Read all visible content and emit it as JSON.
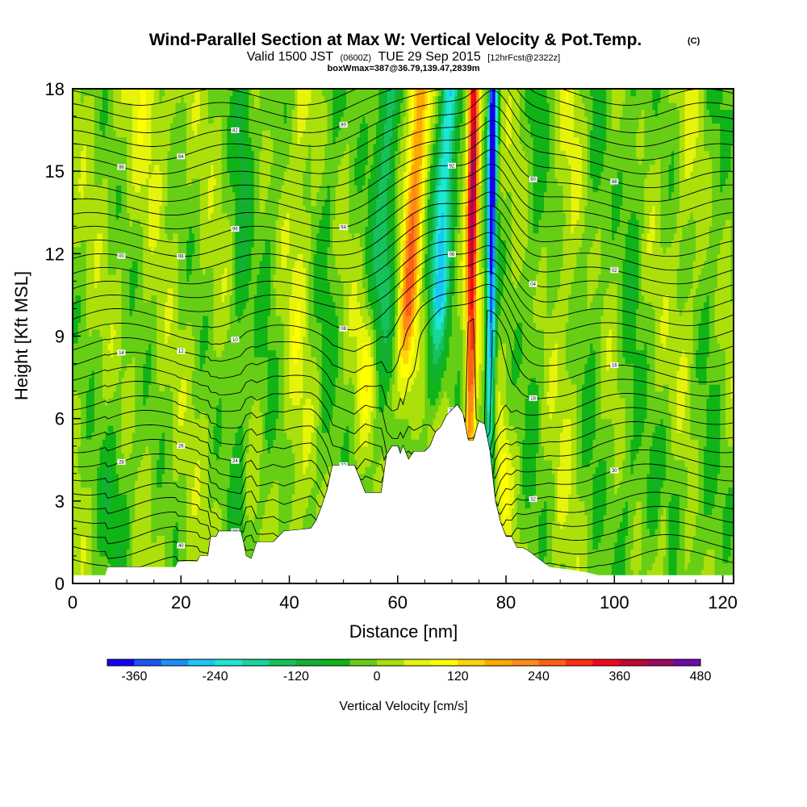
{
  "title": {
    "main": "Wind-Parallel Section at Max W: Vertical Velocity & Pot.Temp.",
    "copyright": "(C)",
    "valid_1": "Valid 1500 JST",
    "valid_z": "(0600Z)",
    "valid_2": "TUE 29 Sep 2015",
    "fcst": "[12hrFcst@2322z]",
    "boxwmax": "boxWmax=387@36.79,139.47,2839m"
  },
  "chart_data": {
    "type": "heatmap",
    "xlabel": "Distance [nm]",
    "ylabel": "Height [Kft MSL]",
    "xlim": [
      0,
      122
    ],
    "ylim": [
      0,
      18
    ],
    "x_ticks": [
      "0",
      "20",
      "40",
      "60",
      "80",
      "100",
      "120"
    ],
    "y_ticks": [
      "0",
      "3",
      "6",
      "9",
      "12",
      "15",
      "18"
    ],
    "colorbar": {
      "label": "Vertical Velocity [cm/s]",
      "tick_labels": [
        "-360",
        "-240",
        "-120",
        "0",
        "120",
        "240",
        "360",
        "480"
      ],
      "min": -400,
      "max": 480,
      "step": 40,
      "colors": [
        "#1500f5",
        "#1b55f7",
        "#1a8ff8",
        "#18c6f7",
        "#1ee6d3",
        "#17d69a",
        "#15c25a",
        "#12b032",
        "#10b416",
        "#66cf15",
        "#abe00b",
        "#e6f40b",
        "#ffff00",
        "#ffd20b",
        "#ffaa00",
        "#ff8a1a",
        "#ff5f13",
        "#ff2f10",
        "#ee0a1c",
        "#c00830",
        "#9e0a5e",
        "#6e0aa8"
      ]
    },
    "terrain_profile": [
      [
        0,
        0.3
      ],
      [
        6,
        0.3
      ],
      [
        6.5,
        0.6
      ],
      [
        19,
        0.6
      ],
      [
        19.5,
        0.8
      ],
      [
        23,
        0.8
      ],
      [
        23.5,
        1.0
      ],
      [
        25,
        1.0
      ],
      [
        25.5,
        1.7
      ],
      [
        26.5,
        1.7
      ],
      [
        27,
        1.9
      ],
      [
        31,
        1.9
      ],
      [
        31.5,
        1.5
      ],
      [
        32,
        1.0
      ],
      [
        33,
        0.9
      ],
      [
        34,
        1.5
      ],
      [
        37,
        1.5
      ],
      [
        38,
        1.7
      ],
      [
        39,
        1.9
      ],
      [
        44,
        2.0
      ],
      [
        45,
        2.3
      ],
      [
        46,
        2.8
      ],
      [
        47,
        3.4
      ],
      [
        48,
        4.3
      ],
      [
        52,
        4.3
      ],
      [
        53,
        3.8
      ],
      [
        54,
        3.3
      ],
      [
        57,
        3.3
      ],
      [
        58,
        4.7
      ],
      [
        59,
        5.0
      ],
      [
        60,
        5.0
      ],
      [
        60.5,
        4.7
      ],
      [
        61,
        5.0
      ],
      [
        62,
        4.5
      ],
      [
        63,
        4.8
      ],
      [
        65,
        4.8
      ],
      [
        66,
        5.0
      ],
      [
        67,
        5.5
      ],
      [
        68,
        5.7
      ],
      [
        69,
        6.1
      ],
      [
        71,
        6.5
      ],
      [
        72,
        6.2
      ],
      [
        73,
        5.2
      ],
      [
        74,
        5.2
      ],
      [
        75,
        5.9
      ],
      [
        76,
        5.8
      ],
      [
        77,
        4.8
      ],
      [
        78,
        3.0
      ],
      [
        79,
        2.2
      ],
      [
        80,
        1.7
      ],
      [
        81,
        1.7
      ],
      [
        82,
        1.3
      ],
      [
        83,
        1.3
      ],
      [
        84,
        1.2
      ],
      [
        86,
        0.9
      ],
      [
        88,
        0.6
      ],
      [
        92,
        0.5
      ],
      [
        95,
        0.4
      ],
      [
        97,
        0.3
      ],
      [
        122,
        0.3
      ]
    ],
    "theta_labels": [
      "42",
      "40",
      "38",
      "36",
      "34",
      "32",
      "30",
      "28",
      "26",
      "24",
      "22",
      "20",
      "18",
      "16",
      "14",
      "12",
      "10",
      "08",
      "06",
      "04",
      "02",
      "00",
      "98",
      "96",
      "94",
      "92",
      "90",
      "88",
      "86",
      "84",
      "82",
      "80"
    ]
  }
}
